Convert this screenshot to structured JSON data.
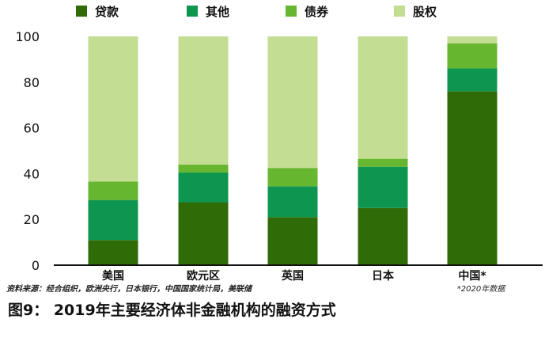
{
  "chart_data": {
    "type": "bar",
    "stacked": true,
    "categories": [
      "美国",
      "欧元区",
      "英国",
      "日本",
      "中国*"
    ],
    "series": [
      {
        "name": "贷款",
        "color": "#2f6b06",
        "values": [
          11,
          27.5,
          21,
          25,
          76
        ]
      },
      {
        "name": "其他",
        "color": "#0e9650",
        "values": [
          17.5,
          13,
          13.5,
          18,
          10
        ]
      },
      {
        "name": "债券",
        "color": "#67b630",
        "values": [
          8,
          3.5,
          8,
          3.5,
          11
        ]
      },
      {
        "name": "股权",
        "color": "#c3dd93",
        "values": [
          63.5,
          56,
          57.5,
          53.5,
          3
        ]
      }
    ],
    "yticks": [
      0,
      20,
      40,
      60,
      80,
      100
    ],
    "ylim": [
      0,
      100
    ],
    "legend_position": "top",
    "grid": false,
    "source": "资料来源：经合组织，欧洲央行，日本银行，中国国家统计局，美联储",
    "footnote": "*2020年数据",
    "caption": "图9：  2019年主要经济体非金融机构的融资方式"
  }
}
